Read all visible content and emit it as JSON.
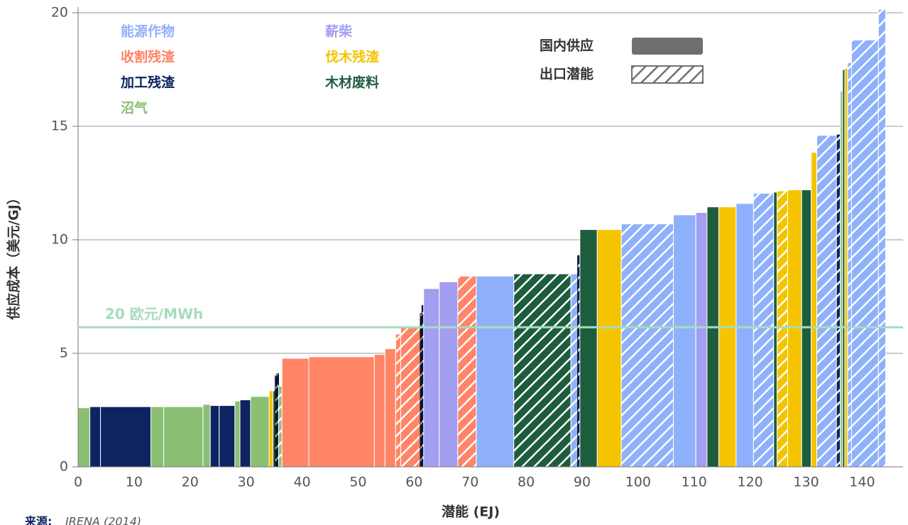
{
  "chart_data": {
    "type": "supply_curve",
    "xlabel": "潜能 (EJ)",
    "ylabel": "供应成本（美元/GJ）",
    "xlim": [
      0,
      147.3
    ],
    "ylim": [
      0,
      20.25
    ],
    "xticks": [
      0,
      10,
      20,
      30,
      40,
      50,
      60,
      70,
      80,
      90,
      100,
      110,
      120,
      130,
      140
    ],
    "yticks": [
      0,
      5,
      10,
      15,
      20
    ],
    "grid": true,
    "series": [
      {
        "name": "能源作物",
        "color": "#8fb0fb"
      },
      {
        "name": "收割残渣",
        "color": "#ff8566"
      },
      {
        "name": "加工残渣",
        "color": "#0d2461"
      },
      {
        "name": "沼气",
        "color": "#8abf74"
      },
      {
        "name": "薪柴",
        "color": "#a29ef0"
      },
      {
        "name": "伐木残渣",
        "color": "#f5c400"
      },
      {
        "name": "木材废料",
        "color": "#1e5c3e"
      }
    ],
    "supply_types": [
      {
        "name": "国内供应",
        "hatched": false,
        "color": "#6f6f72"
      },
      {
        "name": "出口潜能",
        "hatched": true,
        "color": "#6f6f72"
      }
    ],
    "bars": [
      {
        "series": 3,
        "width": 2.1,
        "value": 2.6,
        "hatched": false
      },
      {
        "series": 2,
        "width": 1.9,
        "value": 2.65,
        "hatched": false
      },
      {
        "series": 2,
        "width": 9.0,
        "value": 2.65,
        "hatched": false
      },
      {
        "series": 3,
        "width": 2.3,
        "value": 2.65,
        "hatched": false
      },
      {
        "series": 3,
        "width": 7.0,
        "value": 2.65,
        "hatched": false
      },
      {
        "series": 3,
        "width": 1.3,
        "value": 2.75,
        "hatched": false
      },
      {
        "series": 2,
        "width": 1.6,
        "value": 2.7,
        "hatched": false
      },
      {
        "series": 2,
        "width": 2.8,
        "value": 2.7,
        "hatched": false
      },
      {
        "series": 3,
        "width": 0.9,
        "value": 2.9,
        "hatched": false
      },
      {
        "series": 2,
        "width": 1.9,
        "value": 2.95,
        "hatched": false
      },
      {
        "series": 3,
        "width": 3.3,
        "value": 3.1,
        "hatched": false
      },
      {
        "series": 5,
        "width": 0.7,
        "value": 3.35,
        "hatched": false
      },
      {
        "series": 6,
        "width": 0.4,
        "value": 3.35,
        "hatched": false
      },
      {
        "series": 2,
        "width": 0.3,
        "value": 4.0,
        "hatched": true
      },
      {
        "series": 2,
        "width": 0.3,
        "value": 4.1,
        "hatched": true
      },
      {
        "series": 3,
        "width": 0.6,
        "value": 3.55,
        "hatched": true
      },
      {
        "series": 1,
        "width": 4.8,
        "value": 4.78,
        "hatched": false
      },
      {
        "series": 1,
        "width": 11.7,
        "value": 4.85,
        "hatched": false
      },
      {
        "series": 1,
        "width": 1.9,
        "value": 4.95,
        "hatched": false
      },
      {
        "series": 1,
        "width": 1.9,
        "value": 5.2,
        "hatched": false
      },
      {
        "series": 1,
        "width": 0.9,
        "value": 5.85,
        "hatched": true
      },
      {
        "series": 1,
        "width": 3.5,
        "value": 6.15,
        "hatched": true
      },
      {
        "series": 2,
        "width": 0.3,
        "value": 6.75,
        "hatched": true
      },
      {
        "series": 2,
        "width": 0.3,
        "value": 7.1,
        "hatched": true
      },
      {
        "series": 4,
        "width": 2.8,
        "value": 7.85,
        "hatched": false
      },
      {
        "series": 4,
        "width": 3.3,
        "value": 8.15,
        "hatched": false
      },
      {
        "series": 1,
        "width": 3.3,
        "value": 8.4,
        "hatched": true
      },
      {
        "series": 0,
        "width": 6.7,
        "value": 8.4,
        "hatched": false
      },
      {
        "series": 6,
        "width": 10.2,
        "value": 8.5,
        "hatched": true
      },
      {
        "series": 0,
        "width": 1.2,
        "value": 8.5,
        "hatched": true
      },
      {
        "series": 2,
        "width": 0.4,
        "value": 9.3,
        "hatched": true
      },
      {
        "series": 6,
        "width": 3.1,
        "value": 10.45,
        "hatched": false
      },
      {
        "series": 5,
        "width": 4.3,
        "value": 10.45,
        "hatched": false
      },
      {
        "series": 0,
        "width": 9.3,
        "value": 10.7,
        "hatched": true
      },
      {
        "series": 0,
        "width": 4.0,
        "value": 11.1,
        "hatched": false
      },
      {
        "series": 4,
        "width": 2.0,
        "value": 11.2,
        "hatched": false
      },
      {
        "series": 6,
        "width": 2.1,
        "value": 11.45,
        "hatched": false
      },
      {
        "series": 5,
        "width": 3.1,
        "value": 11.45,
        "hatched": false
      },
      {
        "series": 0,
        "width": 3.1,
        "value": 11.6,
        "hatched": false
      },
      {
        "series": 0,
        "width": 3.6,
        "value": 12.05,
        "hatched": true
      },
      {
        "series": 6,
        "width": 0.6,
        "value": 12.1,
        "hatched": false
      },
      {
        "series": 5,
        "width": 1.9,
        "value": 12.15,
        "hatched": true
      },
      {
        "series": 5,
        "width": 2.5,
        "value": 12.2,
        "hatched": false
      },
      {
        "series": 6,
        "width": 1.7,
        "value": 12.2,
        "hatched": false
      },
      {
        "series": 5,
        "width": 1.0,
        "value": 13.85,
        "hatched": false
      },
      {
        "series": 0,
        "width": 3.5,
        "value": 14.6,
        "hatched": true
      },
      {
        "series": 2,
        "width": 0.7,
        "value": 14.65,
        "hatched": true
      },
      {
        "series": 3,
        "width": 0.4,
        "value": 16.55,
        "hatched": false
      },
      {
        "series": 6,
        "width": 0.4,
        "value": 17.5,
        "hatched": false
      },
      {
        "series": 5,
        "width": 0.5,
        "value": 17.55,
        "hatched": false
      },
      {
        "series": 0,
        "width": 0.7,
        "value": 17.8,
        "hatched": true
      },
      {
        "series": 0,
        "width": 4.8,
        "value": 18.8,
        "hatched": true
      },
      {
        "series": 0,
        "width": 1.3,
        "value": 20.15,
        "hatched": true
      }
    ],
    "reference_line": {
      "value": 6.15,
      "label": "20 欧元/MWh",
      "color": "#a6dcbc"
    },
    "source_label": "来源:",
    "source": "IRENA (2014)"
  }
}
